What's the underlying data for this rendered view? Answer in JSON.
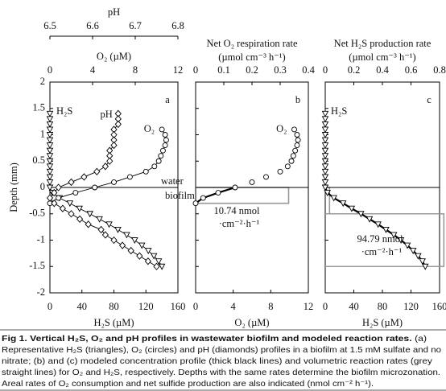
{
  "chart_data": [
    {
      "type": "profile",
      "panel": "a",
      "ylabel": "Depth (mm)",
      "ylim": [
        -2,
        2
      ],
      "yticks": [
        2,
        1.5,
        1,
        0.5,
        0,
        -0.5,
        -1,
        -1.5,
        -2
      ],
      "interface_depth": 0,
      "xlabel": "H₂S (µM)",
      "xlim": [
        0,
        160
      ],
      "xticks": [
        0,
        40,
        80,
        120,
        160
      ],
      "x2label": "O₂ (µM)",
      "x2lim": [
        0,
        12
      ],
      "x2ticks": [
        0,
        4,
        8,
        12
      ],
      "x3label": "pH",
      "x3lim": [
        6.5,
        6.8
      ],
      "x3ticks": [
        6.5,
        6.6,
        6.7,
        6.8
      ],
      "annotations": [
        "water",
        "biofilm"
      ],
      "series": [
        {
          "name": "H₂S",
          "axis": "x",
          "marker": "triangle",
          "line": "thin",
          "x": [
            0,
            0,
            0,
            0,
            0,
            0,
            0,
            0,
            0,
            0,
            0,
            0,
            0,
            0,
            0,
            3,
            12,
            25,
            37,
            50,
            62,
            74,
            85,
            96,
            106,
            115,
            123,
            130,
            136,
            140
          ],
          "y": [
            1.4,
            1.3,
            1.2,
            1.1,
            1.0,
            0.9,
            0.8,
            0.7,
            0.6,
            0.5,
            0.4,
            0.3,
            0.2,
            0.1,
            0,
            -0.1,
            -0.2,
            -0.3,
            -0.4,
            -0.5,
            -0.6,
            -0.7,
            -0.8,
            -0.9,
            -1.0,
            -1.1,
            -1.2,
            -1.3,
            -1.4,
            -1.5
          ]
        },
        {
          "name": "O₂",
          "axis": "x2",
          "marker": "circle",
          "line": "thin",
          "x": [
            10.5,
            10.8,
            10.9,
            10.8,
            10.6,
            10.4,
            10.2,
            9.8,
            9.0,
            7.5,
            6.0,
            4.2,
            2.4,
            0.8,
            0
          ],
          "y": [
            1.1,
            1.0,
            0.9,
            0.8,
            0.7,
            0.6,
            0.5,
            0.4,
            0.3,
            0.2,
            0.1,
            0,
            -0.1,
            -0.2,
            -0.3
          ]
        },
        {
          "name": "pH",
          "axis": "x3",
          "marker": "diamond",
          "line": "thin",
          "x": [
            6.66,
            6.66,
            6.66,
            6.65,
            6.65,
            6.65,
            6.65,
            6.64,
            6.64,
            6.64,
            6.63,
            6.61,
            6.58,
            6.55,
            6.52,
            6.51,
            6.5,
            6.51,
            6.53,
            6.55,
            6.57,
            6.59,
            6.62,
            6.63,
            6.65,
            6.67,
            6.69,
            6.71,
            6.73,
            6.75
          ],
          "y": [
            1.4,
            1.3,
            1.2,
            1.1,
            1.0,
            0.9,
            0.8,
            0.7,
            0.6,
            0.5,
            0.4,
            0.3,
            0.2,
            0.1,
            0,
            -0.1,
            -0.2,
            -0.3,
            -0.4,
            -0.5,
            -0.6,
            -0.7,
            -0.8,
            -0.9,
            -1.0,
            -1.1,
            -1.2,
            -1.3,
            -1.4,
            -1.5
          ]
        }
      ]
    },
    {
      "type": "profile",
      "panel": "b",
      "ylim": [
        -2,
        2
      ],
      "xlabel": "O₂ (µM)",
      "xlim": [
        0,
        12
      ],
      "xticks": [
        0,
        4,
        8,
        12
      ],
      "x2label": "Net O₂ respiration rate",
      "x2unit": "(µmol cm⁻³ h⁻¹)",
      "x2lim": [
        0,
        0.4
      ],
      "x2ticks": [
        0,
        0.1,
        0.2,
        0.3,
        0.4
      ],
      "annotations": [
        "10.74 nmol",
        "·cm⁻²·h⁻¹"
      ],
      "rates": [
        {
          "top": 0,
          "bottom": -0.3,
          "value": 0.33
        }
      ],
      "series": [
        {
          "name": "O₂",
          "axis": "x",
          "marker": "circle",
          "line": "thick",
          "x": [
            10.5,
            10.8,
            10.9,
            10.8,
            10.6,
            10.4,
            10.2,
            9.8,
            9.0,
            7.5,
            6.0,
            4.2,
            2.4,
            0.8,
            0
          ],
          "y": [
            1.1,
            1.0,
            0.9,
            0.8,
            0.7,
            0.6,
            0.5,
            0.4,
            0.3,
            0.2,
            0.1,
            0,
            -0.1,
            -0.2,
            -0.3
          ]
        }
      ]
    },
    {
      "type": "profile",
      "panel": "c",
      "ylim": [
        -2,
        2
      ],
      "xlabel": "H₂S (µM)",
      "xlim": [
        0,
        160
      ],
      "xticks": [
        0,
        40,
        80,
        120,
        160
      ],
      "x2label": "Net H₂S production rate",
      "x2unit": "(µmol cm⁻³ h⁻¹)",
      "x2lim": [
        0,
        0.8
      ],
      "x2ticks": [
        0,
        0.2,
        0.4,
        0.6,
        0.8
      ],
      "annotations": [
        "94.79 nmol",
        "·cm⁻²·h⁻¹"
      ],
      "rates": [
        {
          "top": 0,
          "bottom": -0.5,
          "value": 0.03
        },
        {
          "top": -0.5,
          "bottom": -1.5,
          "value": 0.83
        }
      ],
      "series": [
        {
          "name": "H₂S",
          "axis": "x",
          "marker": "triangle",
          "line": "thick",
          "x": [
            0,
            0,
            0,
            0,
            0,
            0,
            0,
            0,
            0,
            0,
            0,
            0,
            0,
            0,
            0,
            3,
            12,
            25,
            37,
            50,
            62,
            74,
            85,
            96,
            106,
            115,
            123,
            130,
            136,
            140
          ],
          "y": [
            1.4,
            1.3,
            1.2,
            1.1,
            1.0,
            0.9,
            0.8,
            0.7,
            0.6,
            0.5,
            0.4,
            0.3,
            0.2,
            0.1,
            0,
            -0.1,
            -0.2,
            -0.3,
            -0.4,
            -0.5,
            -0.6,
            -0.7,
            -0.8,
            -0.9,
            -1.0,
            -1.1,
            -1.2,
            -1.3,
            -1.4,
            -1.5
          ]
        }
      ]
    }
  ],
  "caption": {
    "title": "Fig 1. Vertical H₂S, O₂ and pH profiles in wastewater biofilm and modeled reaction rates.",
    "text": [
      "(a)",
      "Representative H₂S (triangles), O₂ (circles) and pH (diamonds) profiles in a biofilm at 1.5 mM sulfate and no",
      "nitrate; (b) and (c) modeled concentration profile (thick black lines) and volumetric reaction rates (grey",
      "straight lines) for O₂ and H₂S, respectively. Depths with the same rates determine the biofilm microzonation.",
      "Areal rates of O₂ consumption and net sulfide production are also indicated (nmol cm⁻² h⁻¹)."
    ]
  }
}
